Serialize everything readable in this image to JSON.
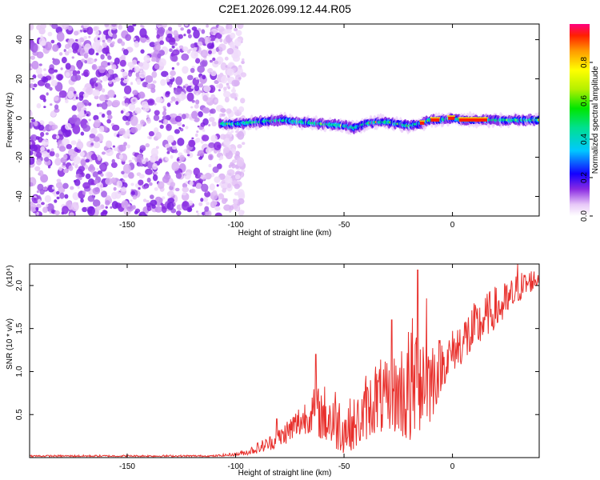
{
  "title": "C2E1.2026.099.12.44.R05",
  "chart_data": [
    {
      "type": "heatmap",
      "name": "spectrogram",
      "xlabel": "Height of straight line (km)",
      "ylabel": "Frequency (Hz)",
      "xlim": [
        -195,
        40
      ],
      "ylim": [
        -50,
        48
      ],
      "xticks": [
        -150,
        -100,
        -50,
        0
      ],
      "yticks": [
        -40,
        -20,
        0,
        20,
        40
      ],
      "noise_region_x": [
        -195,
        -100
      ],
      "signal_track": {
        "x": [
          -107,
          -100,
          -90,
          -80,
          -70,
          -60,
          -50,
          -45,
          -40,
          -35,
          -30,
          -25,
          -20,
          -15,
          -10,
          -5,
          0,
          5,
          10,
          15,
          20,
          25,
          30,
          35,
          40
        ],
        "y": [
          -3,
          -3,
          -2,
          -1,
          -2,
          -3,
          -4,
          -5,
          -3,
          -2,
          -2,
          -3,
          -4,
          -3,
          -1,
          -1,
          0,
          -1,
          -1,
          -1,
          -1,
          -1,
          -1,
          -1,
          -1
        ]
      },
      "colorbar": {
        "label": "Normalized spectral amplitude",
        "range": [
          0,
          1
        ],
        "ticks": [
          0.0,
          0.2,
          0.4,
          0.6,
          0.8
        ]
      }
    },
    {
      "type": "line",
      "name": "snr",
      "xlabel": "Height of straight line (km)",
      "ylabel": "SNR (10 * v/v)",
      "scale_label": "(x10⁴)",
      "xlim": [
        -195,
        40
      ],
      "ylim": [
        0,
        2.25
      ],
      "xticks": [
        -150,
        -100,
        -50,
        0
      ],
      "yticks": [
        0.5,
        1.0,
        1.5,
        2.0
      ],
      "line_color": "#e8302c",
      "envelope": {
        "x": [
          -195,
          -110,
          -100,
          -95,
          -90,
          -85,
          -80,
          -75,
          -70,
          -65,
          -60,
          -55,
          -50,
          -45,
          -40,
          -35,
          -30,
          -25,
          -20,
          -15,
          -10,
          -5,
          0,
          5,
          10,
          15,
          20,
          25,
          30,
          35,
          40
        ],
        "low": [
          0.01,
          0.01,
          0.02,
          0.03,
          0.05,
          0.08,
          0.12,
          0.18,
          0.25,
          0.3,
          0.2,
          0.1,
          0.05,
          0.1,
          0.2,
          0.3,
          0.25,
          0.3,
          0.1,
          0.3,
          0.4,
          0.8,
          1.0,
          1.1,
          1.2,
          1.4,
          1.5,
          1.6,
          1.8,
          1.9,
          2.0
        ],
        "high": [
          0.03,
          0.03,
          0.06,
          0.1,
          0.18,
          0.25,
          0.35,
          0.5,
          0.65,
          0.8,
          0.85,
          0.9,
          0.7,
          0.7,
          0.9,
          1.2,
          1.1,
          1.3,
          1.6,
          1.8,
          1.5,
          1.4,
          1.5,
          1.7,
          1.8,
          1.9,
          2.0,
          2.05,
          2.15,
          2.2,
          2.2
        ]
      },
      "spikes": [
        {
          "x": -81,
          "y": 0.45
        },
        {
          "x": -63,
          "y": 1.2
        },
        {
          "x": -45,
          "y": 0.35
        },
        {
          "x": -40,
          "y": 0.95
        },
        {
          "x": -28,
          "y": 1.6
        },
        {
          "x": -16,
          "y": 2.18
        },
        {
          "x": -12,
          "y": 1.85
        },
        {
          "x": 30,
          "y": 2.25
        }
      ]
    }
  ]
}
